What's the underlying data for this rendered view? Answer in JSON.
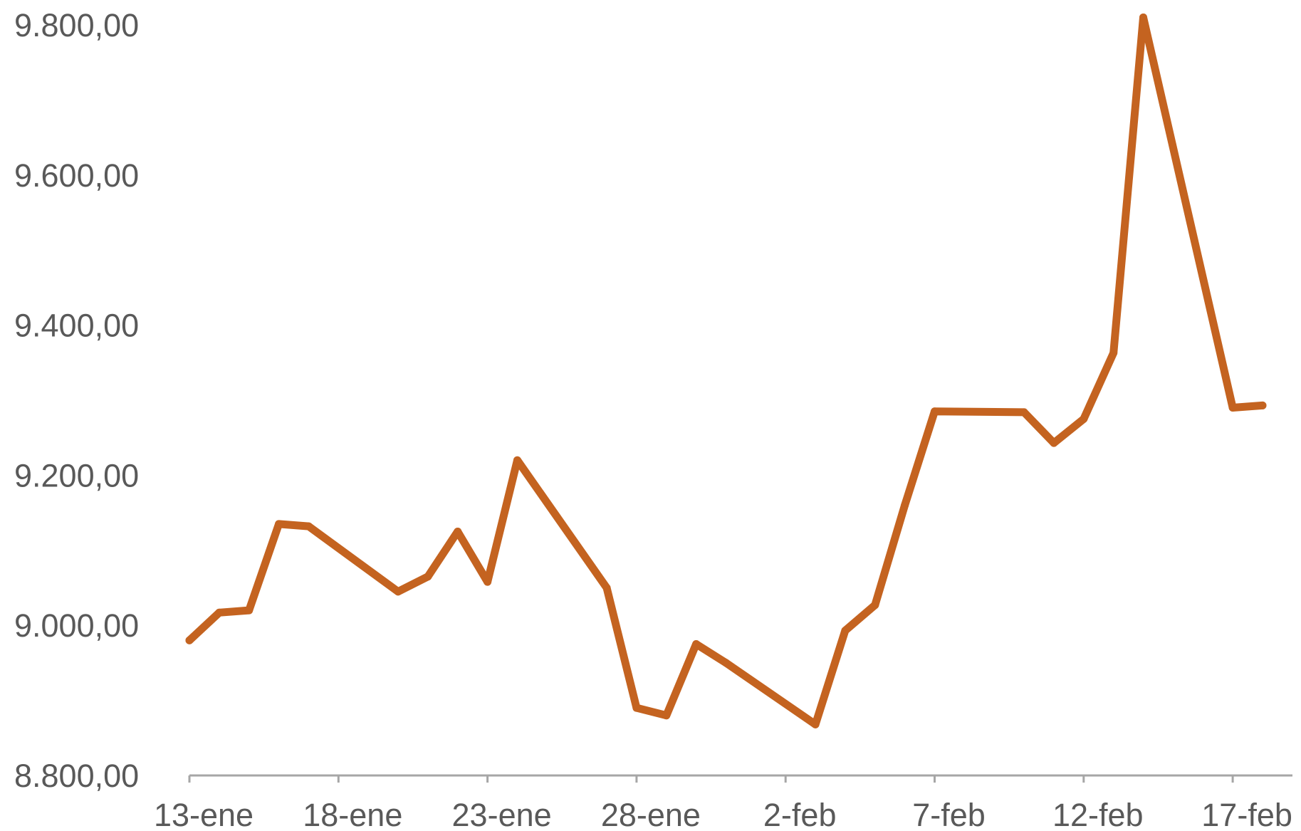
{
  "chart_data": {
    "type": "line",
    "title": "",
    "xlabel": "",
    "ylabel": "",
    "ylim": [
      8800,
      9800
    ],
    "grid": false,
    "legend": "none",
    "y_ticks": [
      8800,
      9000,
      9200,
      9400,
      9600,
      9800
    ],
    "y_tick_labels": [
      "8.800,00",
      "9.000,00",
      "9.200,00",
      "9.400,00",
      "9.600,00",
      "9.800,00"
    ],
    "x_tick_labels": [
      "13-ene",
      "18-ene",
      "23-ene",
      "28-ene",
      "2-feb",
      "7-feb",
      "12-feb",
      "17-feb"
    ],
    "x_tick_dates": [
      "13-ene",
      "18-ene",
      "23-ene",
      "28-ene",
      "2-feb",
      "7-feb",
      "12-feb",
      "17-feb"
    ],
    "x_range": [
      "12-ene",
      "18-feb"
    ],
    "colors": {
      "line": "#C46320",
      "axis": "#A6A6A6",
      "text": "#595959"
    },
    "series": [
      {
        "x": [
          "13-ene",
          "14-ene",
          "15-ene",
          "16-ene",
          "17-ene",
          "20-ene",
          "21-ene",
          "22-ene",
          "23-ene",
          "24-ene",
          "27-ene",
          "28-ene",
          "29-ene",
          "30-ene",
          "31-ene",
          "3-feb",
          "4-feb",
          "5-feb",
          "6-feb",
          "7-feb",
          "10-feb",
          "11-feb",
          "12-feb",
          "13-feb",
          "14-feb",
          "17-feb",
          "18-feb"
        ],
        "values": [
          8980,
          9017,
          9020,
          9135,
          9132,
          9045,
          9065,
          9125,
          9058,
          9220,
          9050,
          8890,
          8880,
          8975,
          8950,
          8868,
          8993,
          9027,
          9160,
          9285,
          9284,
          9243,
          9275,
          9363,
          9810,
          9290,
          9293
        ]
      }
    ]
  }
}
